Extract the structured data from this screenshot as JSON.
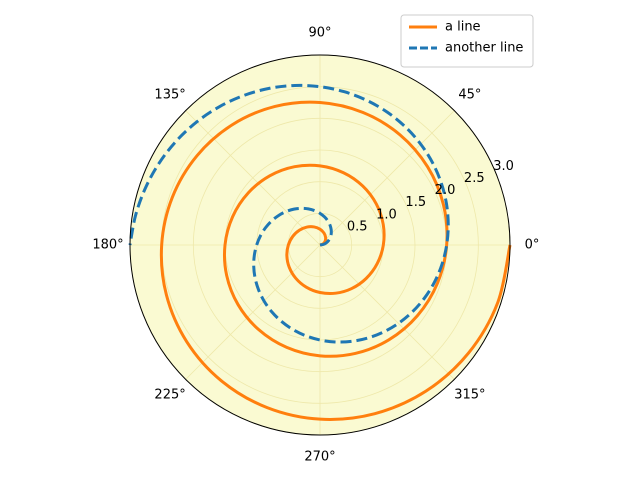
{
  "chart_data": {
    "type": "polar-line",
    "rlim": [
      0,
      3
    ],
    "rticks": [
      0.5,
      {
        "value": 1,
        "label": "1.0"
      },
      1.5,
      {
        "value": 2,
        "label": "2.0"
      },
      2.5,
      {
        "value": 3,
        "label": "3.0"
      }
    ],
    "thetaticks": [
      {
        "value": 0,
        "label": "0°"
      },
      {
        "value": 45,
        "label": "45°"
      },
      {
        "value": 90,
        "label": "90°"
      },
      {
        "value": 135,
        "label": "135°"
      },
      {
        "value": 180,
        "label": "180°"
      },
      {
        "value": 225,
        "label": "225°"
      },
      {
        "value": 270,
        "label": "270°"
      },
      {
        "value": 315,
        "label": "315°"
      }
    ],
    "grid": true,
    "grid_color": "#eee8aa",
    "facecolor": "#fafad2",
    "legend": "upper right",
    "series": [
      {
        "name": "a line",
        "color": "#ff7f0e",
        "dash": false,
        "theta": [
          0,
          18,
          36,
          54,
          72,
          90,
          108,
          126,
          144,
          162,
          180,
          198,
          216,
          234,
          252,
          270,
          288,
          306,
          324,
          342,
          360,
          378,
          396,
          414,
          432,
          450,
          468,
          486,
          504,
          522,
          540,
          558,
          576,
          594,
          612,
          630,
          648,
          666,
          684,
          702,
          720,
          738,
          756,
          774,
          792,
          810,
          828,
          846,
          864,
          882,
          900,
          918,
          936,
          954,
          972,
          990,
          1008,
          1026,
          1044,
          1062,
          1080
        ],
        "r": [
          0,
          0.05,
          0.1,
          0.15,
          0.2,
          0.25,
          0.3,
          0.35,
          0.4,
          0.45,
          0.5,
          0.55,
          0.6,
          0.65,
          0.7,
          0.75,
          0.8,
          0.85,
          0.9,
          0.95,
          1,
          1.05,
          1.1,
          1.15,
          1.2,
          1.25,
          1.3,
          1.35,
          1.4,
          1.45,
          1.5,
          1.55,
          1.6,
          1.65,
          1.7,
          1.75,
          1.8,
          1.85,
          1.9,
          1.95,
          2,
          2.05,
          2.1,
          2.15,
          2.2,
          2.25,
          2.3,
          2.35,
          2.4,
          2.45,
          2.5,
          2.55,
          2.6,
          2.65,
          2.7,
          2.75,
          2.8,
          2.85,
          2.9,
          2.95,
          3
        ]
      },
      {
        "name": "another line",
        "color": "#1f77b4",
        "dash": true,
        "theta": [
          0,
          9,
          18,
          27,
          36,
          45,
          54,
          63,
          72,
          81,
          90,
          99,
          108,
          117,
          126,
          135,
          144,
          153,
          162,
          171,
          180,
          189,
          198,
          207,
          216,
          225,
          234,
          243,
          252,
          261,
          270,
          279,
          288,
          297,
          306,
          315,
          324,
          333,
          342,
          351,
          360,
          369,
          378,
          387,
          396,
          405,
          414,
          423,
          432,
          441,
          450,
          459,
          468,
          477,
          486,
          495,
          504,
          513,
          522,
          531,
          540
        ],
        "r": [
          0,
          0.05,
          0.1,
          0.15,
          0.2,
          0.25,
          0.3,
          0.35,
          0.4,
          0.45,
          0.5,
          0.55,
          0.6,
          0.65,
          0.7,
          0.75,
          0.8,
          0.85,
          0.9,
          0.95,
          1,
          1.05,
          1.1,
          1.15,
          1.2,
          1.25,
          1.3,
          1.35,
          1.4,
          1.45,
          1.5,
          1.55,
          1.6,
          1.65,
          1.7,
          1.75,
          1.8,
          1.85,
          1.9,
          1.95,
          2,
          2.05,
          2.1,
          2.15,
          2.2,
          2.25,
          2.3,
          2.35,
          2.4,
          2.45,
          2.5,
          2.55,
          2.6,
          2.65,
          2.7,
          2.75,
          2.8,
          2.85,
          2.9,
          2.95,
          3
        ]
      }
    ]
  }
}
